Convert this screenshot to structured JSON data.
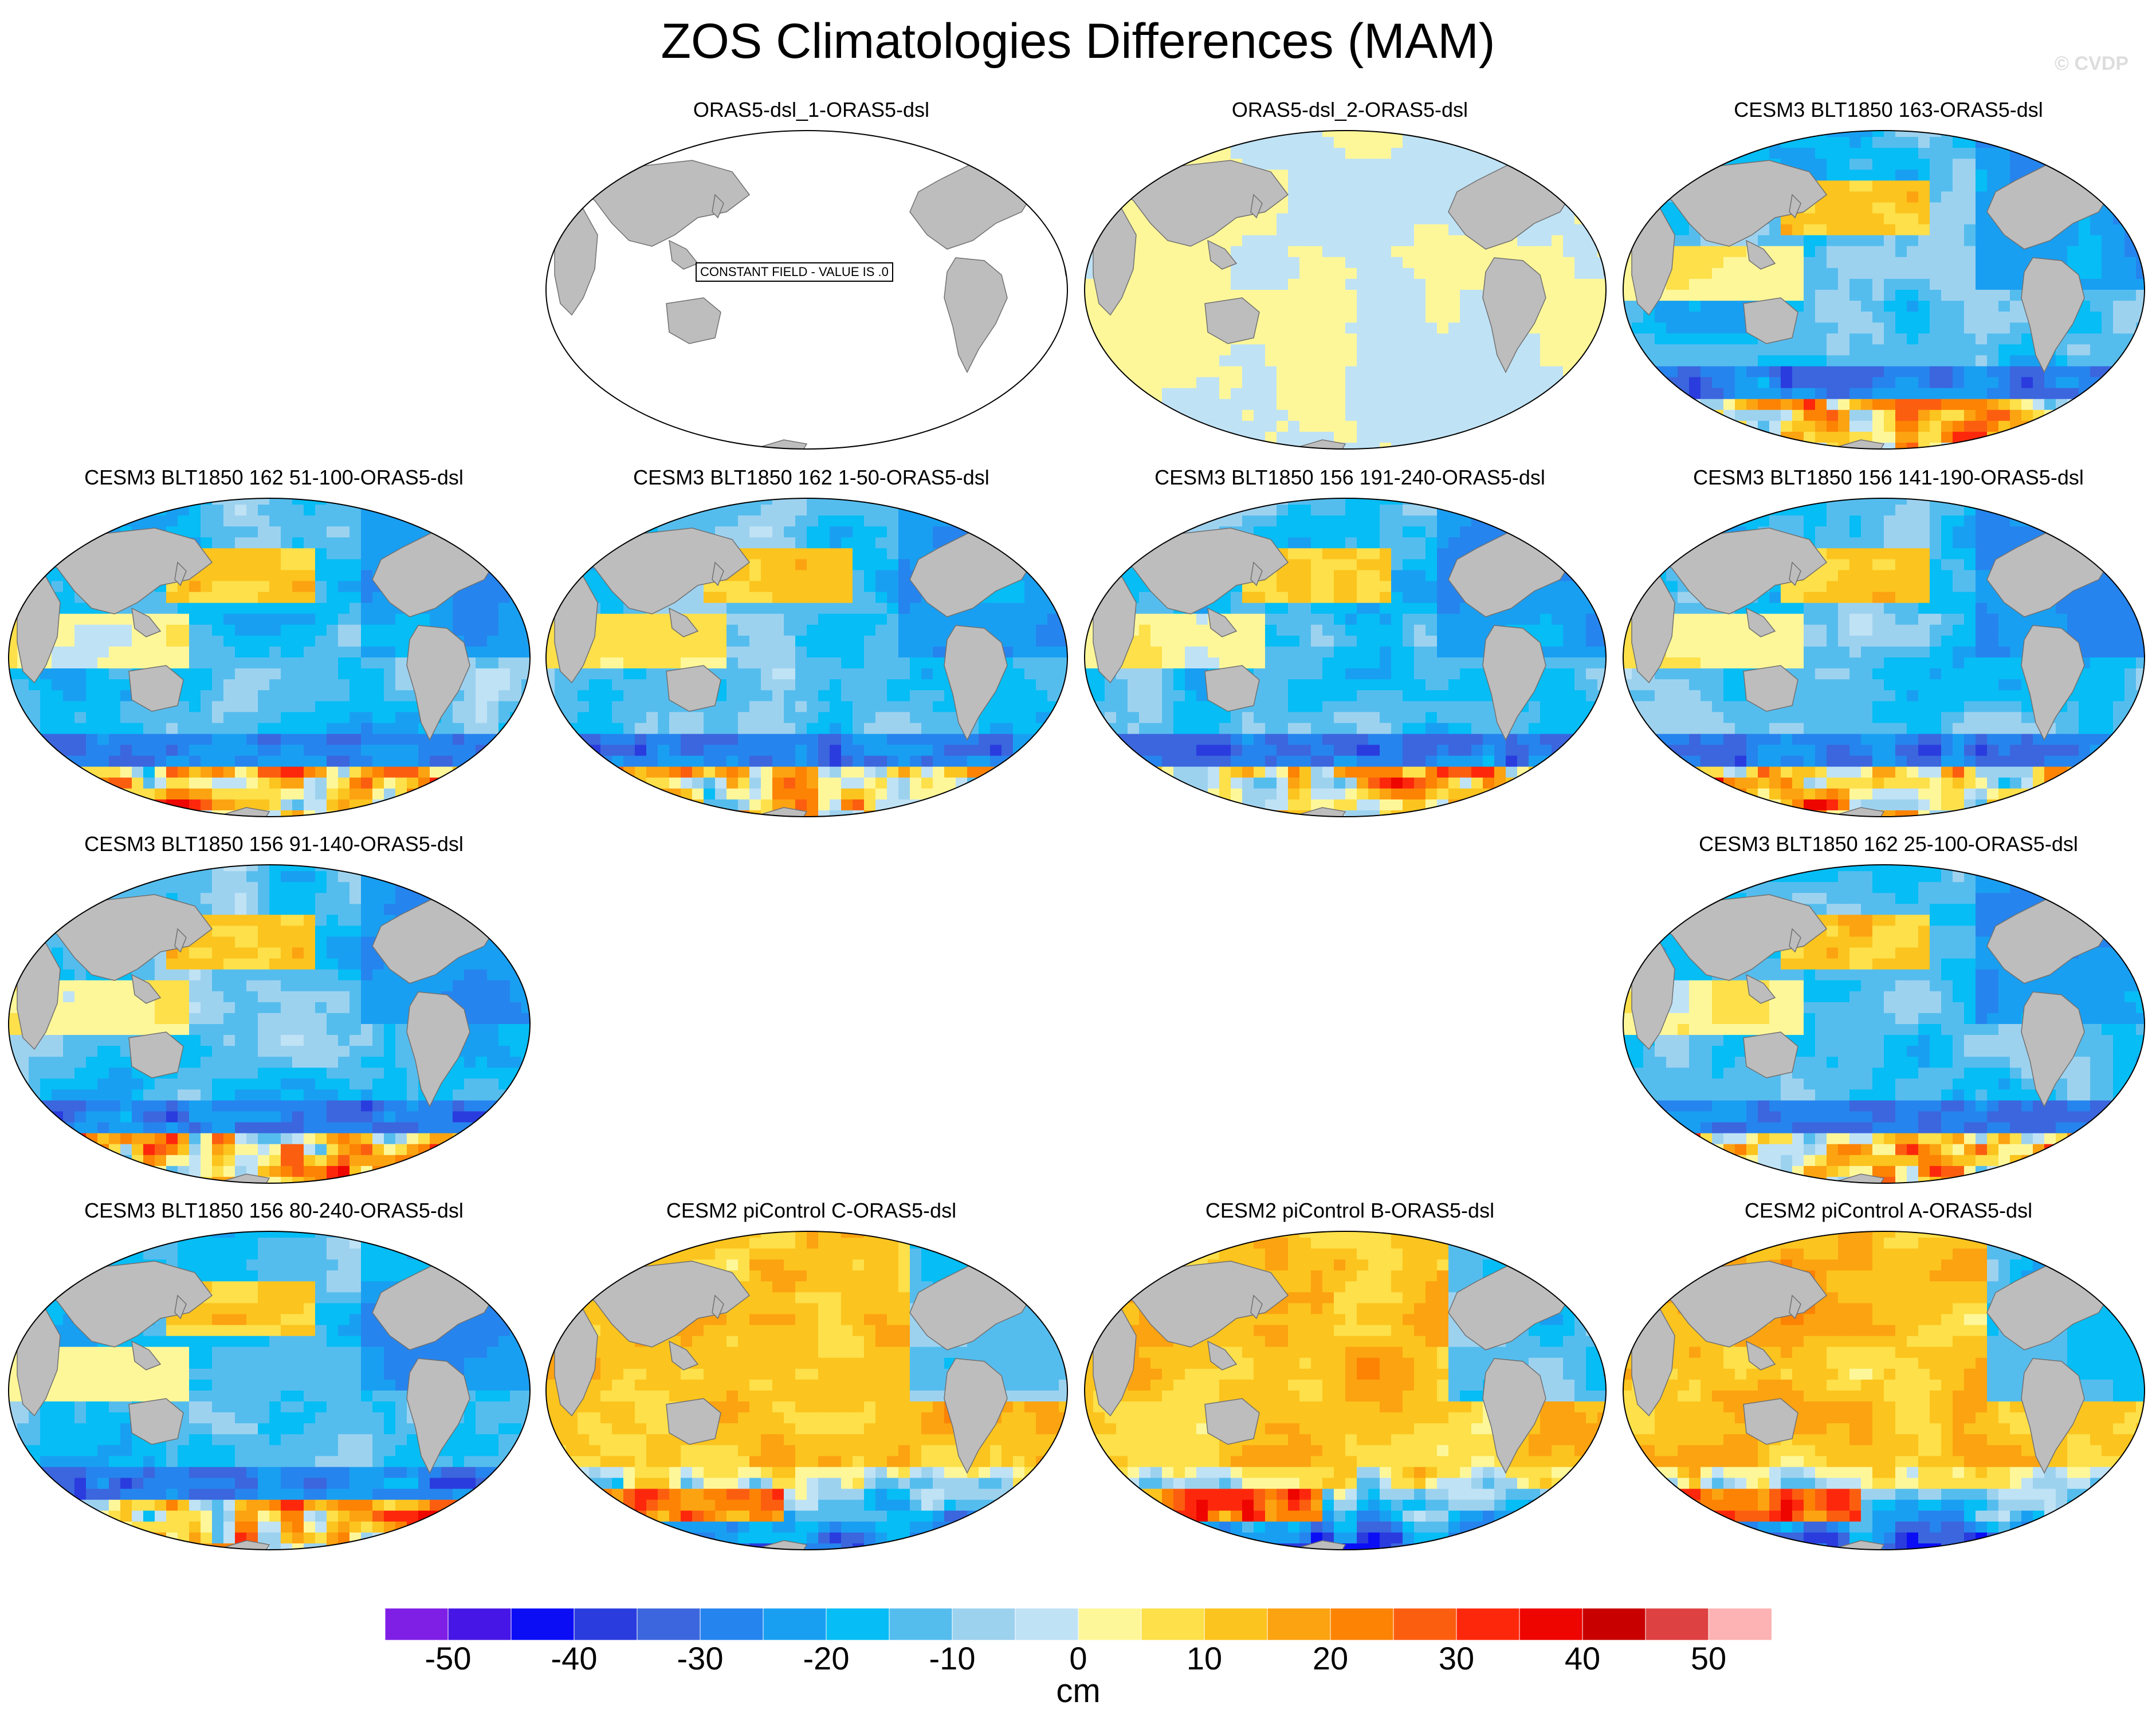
{
  "figure": {
    "title": "ZOS Climatologies Differences (MAM)",
    "credit": "© CVDP",
    "colors": {
      "land": "#bdbdbd",
      "coast": "#707070",
      "ocean_empty": "#ffffff"
    }
  },
  "chart_data": {
    "type": "heatmap",
    "title": "ZOS Climatologies Differences (MAM)",
    "projection": "robinson",
    "units": "cm",
    "colorbar": {
      "levels": [
        -55,
        -50,
        -45,
        -40,
        -35,
        -30,
        -25,
        -20,
        -15,
        -10,
        -5,
        0,
        5,
        10,
        15,
        20,
        25,
        30,
        35,
        40,
        45,
        50,
        55
      ],
      "colors": [
        "#7f1fe6",
        "#4516e6",
        "#0b0ef5",
        "#2a3cde",
        "#3b66de",
        "#2684ee",
        "#199ff2",
        "#06bdf5",
        "#55bdee",
        "#9dd2ef",
        "#bfe2f5",
        "#fef79a",
        "#fde04a",
        "#fcc41e",
        "#fca311",
        "#fd8304",
        "#fc5e10",
        "#fd280c",
        "#ee0500",
        "#c80000",
        "#de4141",
        "#fdb3b3"
      ],
      "tick_values": [
        -50,
        -40,
        -30,
        -20,
        -10,
        0,
        10,
        20,
        30,
        40,
        50
      ],
      "tick_labels": [
        "-50",
        "-40",
        "-30",
        "-20",
        "-10",
        "0",
        "10",
        "20",
        "30",
        "40",
        "50"
      ]
    },
    "panels": [
      {
        "title": "ORAS5-dsl_1-ORAS5-dsl",
        "row": 0,
        "col": 1,
        "pattern": "constant",
        "note": "CONSTANT FIELD - VALUE IS .0"
      },
      {
        "title": "ORAS5-dsl_2-ORAS5-dsl",
        "row": 0,
        "col": 2,
        "pattern": "near_zero"
      },
      {
        "title": "CESM3 BLT1850 163-ORAS5-dsl",
        "row": 0,
        "col": 3,
        "pattern": "cesm3"
      },
      {
        "title": "CESM3 BLT1850 162 51-100-ORAS5-dsl",
        "row": 1,
        "col": 0,
        "pattern": "cesm3"
      },
      {
        "title": "CESM3 BLT1850 162 1-50-ORAS5-dsl",
        "row": 1,
        "col": 1,
        "pattern": "cesm3"
      },
      {
        "title": "CESM3 BLT1850 156 191-240-ORAS5-dsl",
        "row": 1,
        "col": 2,
        "pattern": "cesm3"
      },
      {
        "title": "CESM3 BLT1850 156 141-190-ORAS5-dsl",
        "row": 1,
        "col": 3,
        "pattern": "cesm3"
      },
      {
        "title": "CESM3 BLT1850 156 91-140-ORAS5-dsl",
        "row": 2,
        "col": 0,
        "pattern": "cesm3"
      },
      {
        "title": "CESM3 BLT1850 162 25-100-ORAS5-dsl",
        "row": 2,
        "col": 3,
        "pattern": "cesm3"
      },
      {
        "title": "CESM3 BLT1850 156 80-240-ORAS5-dsl",
        "row": 3,
        "col": 0,
        "pattern": "cesm3"
      },
      {
        "title": "CESM2 piControl C-ORAS5-dsl",
        "row": 3,
        "col": 1,
        "pattern": "cesm2"
      },
      {
        "title": "CESM2 piControl B-ORAS5-dsl",
        "row": 3,
        "col": 2,
        "pattern": "cesm2"
      },
      {
        "title": "CESM2 piControl A-ORAS5-dsl",
        "row": 3,
        "col": 3,
        "pattern": "cesm2"
      }
    ]
  }
}
